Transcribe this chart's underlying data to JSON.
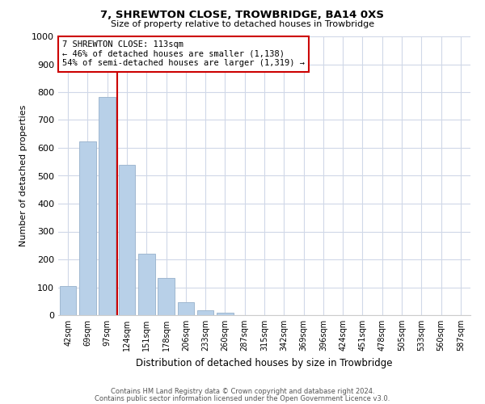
{
  "title": "7, SHREWTON CLOSE, TROWBRIDGE, BA14 0XS",
  "subtitle": "Size of property relative to detached houses in Trowbridge",
  "xlabel": "Distribution of detached houses by size in Trowbridge",
  "ylabel": "Number of detached properties",
  "bar_labels": [
    "42sqm",
    "69sqm",
    "97sqm",
    "124sqm",
    "151sqm",
    "178sqm",
    "206sqm",
    "233sqm",
    "260sqm",
    "287sqm",
    "315sqm",
    "342sqm",
    "369sqm",
    "396sqm",
    "424sqm",
    "451sqm",
    "478sqm",
    "505sqm",
    "533sqm",
    "560sqm",
    "587sqm"
  ],
  "bar_values": [
    103,
    622,
    783,
    538,
    220,
    133,
    45,
    18,
    10,
    0,
    0,
    0,
    0,
    0,
    0,
    0,
    0,
    0,
    0,
    0,
    0
  ],
  "bar_color": "#b8d0e8",
  "bar_edge_color": "#a0b8d0",
  "vline_color": "#cc0000",
  "annotation_line1": "7 SHREWTON CLOSE: 113sqm",
  "annotation_line2": "← 46% of detached houses are smaller (1,138)",
  "annotation_line3": "54% of semi-detached houses are larger (1,319) →",
  "annotation_box_color": "#ffffff",
  "annotation_box_edge": "#cc0000",
  "ylim": [
    0,
    1000
  ],
  "yticks": [
    0,
    100,
    200,
    300,
    400,
    500,
    600,
    700,
    800,
    900,
    1000
  ],
  "footer_line1": "Contains HM Land Registry data © Crown copyright and database right 2024.",
  "footer_line2": "Contains public sector information licensed under the Open Government Licence v3.0.",
  "bg_color": "#ffffff",
  "grid_color": "#d0d8e8",
  "title_fontsize": 9.5,
  "subtitle_fontsize": 8,
  "ylabel_fontsize": 8,
  "xlabel_fontsize": 8.5,
  "tick_fontsize": 7,
  "annot_fontsize": 7.5,
  "footer_fontsize": 6
}
